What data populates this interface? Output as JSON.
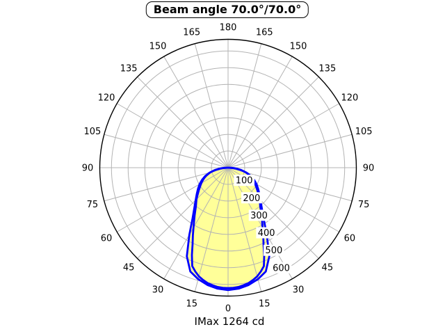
{
  "title": "Beam angle 70.0°/70.0°",
  "footer": "IMax 1264 cd",
  "colors": {
    "background": "#ffffff",
    "grid": "#b3b3b3",
    "outer_circle": "#000000",
    "curve": "#0000ff",
    "beam_fill": "#ffff99",
    "text": "#000000"
  },
  "chart_data": {
    "type": "line",
    "subtype": "polar-photometric",
    "title": "Beam angle 70.0°/70.0°",
    "caption": "IMax 1264 cd",
    "beam_angle_deg": [
      70.0,
      70.0
    ],
    "imax_cd": 1264,
    "angle_zero_position": "bottom",
    "angle_tick_step_deg": 15,
    "angle_tick_labels": [
      "0",
      "15",
      "30",
      "45",
      "60",
      "75",
      "90",
      "105",
      "120",
      "135",
      "150",
      "165",
      "180"
    ],
    "angle_labels_both_sides": true,
    "radial_axis_max": 770,
    "radial_gridline_values": [
      100,
      200,
      300,
      400,
      500,
      600,
      700
    ],
    "radial_tick_labels": [
      "100",
      "200",
      "300",
      "400",
      "500",
      "600"
    ],
    "radial_label_angle_deg": 22.5,
    "grid": true,
    "series": [
      {
        "name": "curve-1-smooth",
        "color": "#0000ff",
        "fill": "#ffff99",
        "symmetric_mirror": true,
        "points_deg_cd": [
          [
            0,
            722
          ],
          [
            2.5,
            721
          ],
          [
            5,
            718
          ],
          [
            7.5,
            711
          ],
          [
            10,
            703
          ],
          [
            12.5,
            690
          ],
          [
            15,
            675
          ],
          [
            17.5,
            653
          ],
          [
            20,
            628
          ],
          [
            22.5,
            567
          ],
          [
            25,
            504
          ],
          [
            27.5,
            457
          ],
          [
            30,
            415
          ],
          [
            32.5,
            380
          ],
          [
            35,
            350
          ],
          [
            37.5,
            323
          ],
          [
            40,
            300
          ],
          [
            42.5,
            283
          ],
          [
            45,
            268
          ],
          [
            47.5,
            251
          ],
          [
            50,
            235
          ],
          [
            52.5,
            221
          ],
          [
            55,
            208
          ],
          [
            57.5,
            196
          ],
          [
            60,
            185
          ],
          [
            62.5,
            174
          ],
          [
            65,
            163
          ],
          [
            67.5,
            151
          ],
          [
            70,
            138
          ],
          [
            72.5,
            124
          ],
          [
            75,
            110
          ],
          [
            77.5,
            93
          ],
          [
            80,
            75
          ],
          [
            82.5,
            58
          ],
          [
            85,
            40
          ],
          [
            87.5,
            20
          ],
          [
            90,
            0
          ]
        ]
      },
      {
        "name": "curve-2-angular",
        "color": "#0000ff",
        "fill": "#ffff99",
        "symmetric_mirror": true,
        "points_deg_cd": [
          [
            0,
            734
          ],
          [
            5,
            728
          ],
          [
            10,
            714
          ],
          [
            15,
            692
          ],
          [
            20,
            662
          ],
          [
            25,
            586
          ],
          [
            30,
            465
          ],
          [
            35,
            372
          ],
          [
            40,
            315
          ],
          [
            45,
            275
          ],
          [
            50,
            245
          ],
          [
            55,
            220
          ],
          [
            60,
            197
          ],
          [
            65,
            172
          ],
          [
            70,
            146
          ],
          [
            75,
            115
          ],
          [
            80,
            78
          ],
          [
            85,
            42
          ],
          [
            90,
            0
          ]
        ]
      }
    ]
  }
}
